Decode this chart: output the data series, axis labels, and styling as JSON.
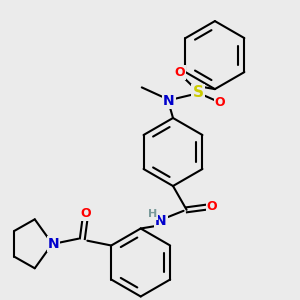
{
  "bg_color": "#ebebeb",
  "bond_color": "#000000",
  "atom_colors": {
    "N": "#0000cc",
    "N_amide": "#0000cc",
    "O": "#ff0000",
    "S": "#cccc00",
    "H": "#7a9a9a"
  },
  "lw": 1.5,
  "figsize": [
    3.0,
    3.0
  ],
  "dpi": 100
}
